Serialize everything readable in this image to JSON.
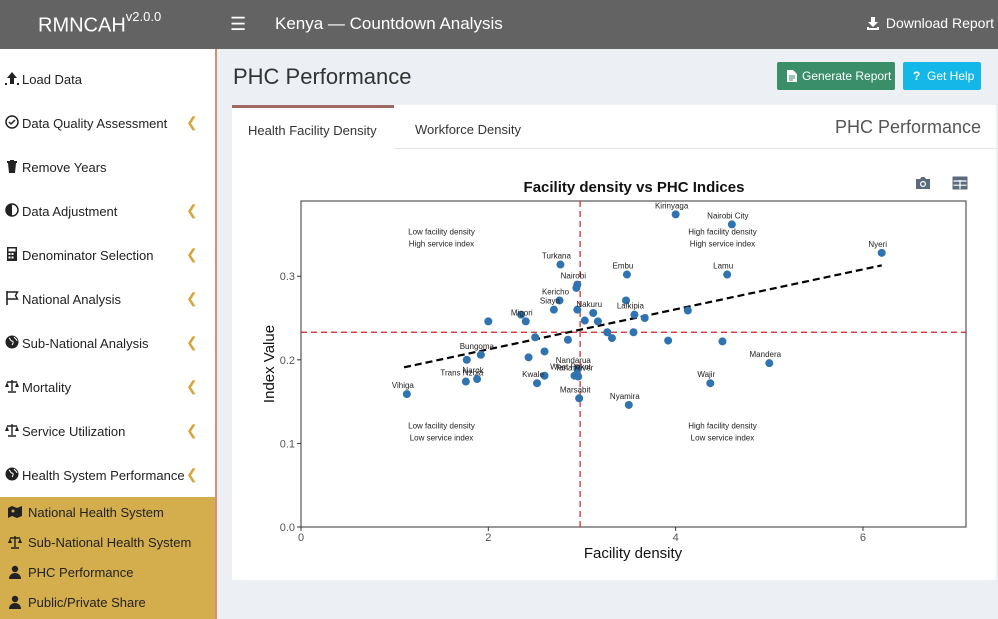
{
  "header": {
    "brand": "RMNCAH",
    "version": "v2.0.0",
    "title": "Kenya — Countdown Analysis",
    "download_label": "Download Report"
  },
  "sidebar": {
    "items": [
      {
        "label": "Load Data",
        "icon": "upload-icon",
        "chevron": false
      },
      {
        "label": "Data Quality Assessment",
        "icon": "check-circle-icon",
        "chevron": true
      },
      {
        "label": "Remove Years",
        "icon": "trash-icon",
        "chevron": false
      },
      {
        "label": "Data Adjustment",
        "icon": "half-circle-icon",
        "chevron": true
      },
      {
        "label": "Denominator Selection",
        "icon": "calculator-icon",
        "chevron": true
      },
      {
        "label": "National Analysis",
        "icon": "flag-icon",
        "chevron": true
      },
      {
        "label": "Sub-National Analysis",
        "icon": "globe-icon",
        "chevron": true
      },
      {
        "label": "Mortality",
        "icon": "scale-icon",
        "chevron": true
      },
      {
        "label": "Service Utilization",
        "icon": "scale-icon",
        "chevron": true
      },
      {
        "label": "Health System Performance",
        "icon": "globe-icon",
        "chevron": true
      }
    ],
    "subitems": [
      {
        "label": "National Health System",
        "icon": "map-icon"
      },
      {
        "label": "Sub-National Health System",
        "icon": "scale-icon"
      },
      {
        "label": "PHC Performance",
        "icon": "user-icon"
      },
      {
        "label": "Public/Private Share",
        "icon": "user-icon"
      }
    ]
  },
  "main": {
    "title": "PHC Performance",
    "generate_label": "Generate Report",
    "help_label": "Get Help",
    "tabs": [
      "Health Facility Density",
      "Workforce Density"
    ],
    "card_title": "PHC Performance"
  },
  "chart_data": {
    "type": "scatter",
    "title": "Facility density vs PHC Indices",
    "xlabel": "Facility density",
    "ylabel": "Index Value",
    "xlim": [
      0,
      7.1
    ],
    "ylim": [
      0,
      0.39
    ],
    "xticks": [
      0,
      2,
      4,
      6
    ],
    "yticks": [
      0.0,
      0.1,
      0.2,
      0.3
    ],
    "ytick_labels": [
      "0.0",
      "0.1",
      "0.2",
      "0.3"
    ],
    "vline_x": 2.98,
    "hline_y": 0.233,
    "trend": {
      "x": [
        1.1,
        6.2
      ],
      "y": [
        0.191,
        0.313
      ]
    },
    "quadrant_labels": [
      {
        "text": [
          "Low facility density",
          "High service index"
        ],
        "x": 1.5,
        "y": 0.35
      },
      {
        "text": [
          "High facility density",
          "High service index"
        ],
        "x": 4.5,
        "y": 0.35
      },
      {
        "text": [
          "Low facility density",
          "Low service index"
        ],
        "x": 1.5,
        "y": 0.118
      },
      {
        "text": [
          "High facility density",
          "Low service index"
        ],
        "x": 4.5,
        "y": 0.118
      }
    ],
    "points": [
      {
        "x": 4.0,
        "y": 0.374,
        "label": "Kirinyaga"
      },
      {
        "x": 4.6,
        "y": 0.362,
        "label": "Nairobi City"
      },
      {
        "x": 6.2,
        "y": 0.328,
        "label": "Nyeri"
      },
      {
        "x": 2.77,
        "y": 0.314,
        "label": "Turkana"
      },
      {
        "x": 3.48,
        "y": 0.302,
        "label": "Embu"
      },
      {
        "x": 4.55,
        "y": 0.302,
        "label": "Lamu"
      },
      {
        "x": 2.95,
        "y": 0.29,
        "label": "Nairobi"
      },
      {
        "x": 2.94,
        "y": 0.286,
        "label": ""
      },
      {
        "x": 2.76,
        "y": 0.271,
        "label": "Kericho"
      },
      {
        "x": 3.47,
        "y": 0.271,
        "label": ""
      },
      {
        "x": 2.7,
        "y": 0.26,
        "label": "Siaya"
      },
      {
        "x": 2.95,
        "y": 0.26,
        "label": ""
      },
      {
        "x": 3.12,
        "y": 0.256,
        "label": "Nakuru"
      },
      {
        "x": 3.56,
        "y": 0.254,
        "label": "Laikipia"
      },
      {
        "x": 2.35,
        "y": 0.254,
        "label": ""
      },
      {
        "x": 4.13,
        "y": 0.259,
        "label": ""
      },
      {
        "x": 3.67,
        "y": 0.25,
        "label": ""
      },
      {
        "x": 2.0,
        "y": 0.246,
        "label": ""
      },
      {
        "x": 2.4,
        "y": 0.246,
        "label": "Migori"
      },
      {
        "x": 3.03,
        "y": 0.247,
        "label": ""
      },
      {
        "x": 3.55,
        "y": 0.233,
        "label": ""
      },
      {
        "x": 3.27,
        "y": 0.233,
        "label": ""
      },
      {
        "x": 3.17,
        "y": 0.246,
        "label": ""
      },
      {
        "x": 2.5,
        "y": 0.227,
        "label": ""
      },
      {
        "x": 3.32,
        "y": 0.226,
        "label": ""
      },
      {
        "x": 2.85,
        "y": 0.224,
        "label": ""
      },
      {
        "x": 3.92,
        "y": 0.223,
        "label": ""
      },
      {
        "x": 4.5,
        "y": 0.222,
        "label": ""
      },
      {
        "x": 2.6,
        "y": 0.21,
        "label": ""
      },
      {
        "x": 1.92,
        "y": 0.206,
        "label": "Bungoma"
      },
      {
        "x": 1.77,
        "y": 0.2,
        "label": ""
      },
      {
        "x": 2.43,
        "y": 0.203,
        "label": ""
      },
      {
        "x": 5.0,
        "y": 0.196,
        "label": "Mandera"
      },
      {
        "x": 2.95,
        "y": 0.189,
        "label": "Nandarua"
      },
      {
        "x": 2.92,
        "y": 0.181,
        "label": "West Pokot"
      },
      {
        "x": 2.6,
        "y": 0.181,
        "label": ""
      },
      {
        "x": 2.96,
        "y": 0.18,
        "label": "Tana River"
      },
      {
        "x": 1.88,
        "y": 0.177,
        "label": "Narok"
      },
      {
        "x": 1.76,
        "y": 0.174,
        "label": "Trans Nzoia"
      },
      {
        "x": 2.52,
        "y": 0.172,
        "label": "Kwale"
      },
      {
        "x": 4.37,
        "y": 0.172,
        "label": "Wajir"
      },
      {
        "x": 2.97,
        "y": 0.154,
        "label": "Marsabit"
      },
      {
        "x": 3.5,
        "y": 0.146,
        "label": "Nyamira"
      },
      {
        "x": 1.13,
        "y": 0.159,
        "label": "Vihiga"
      }
    ],
    "colors": {
      "points": "#2f73b1",
      "refline": "#d22020",
      "trend": "#000000"
    },
    "legend": "none",
    "grid": false
  }
}
